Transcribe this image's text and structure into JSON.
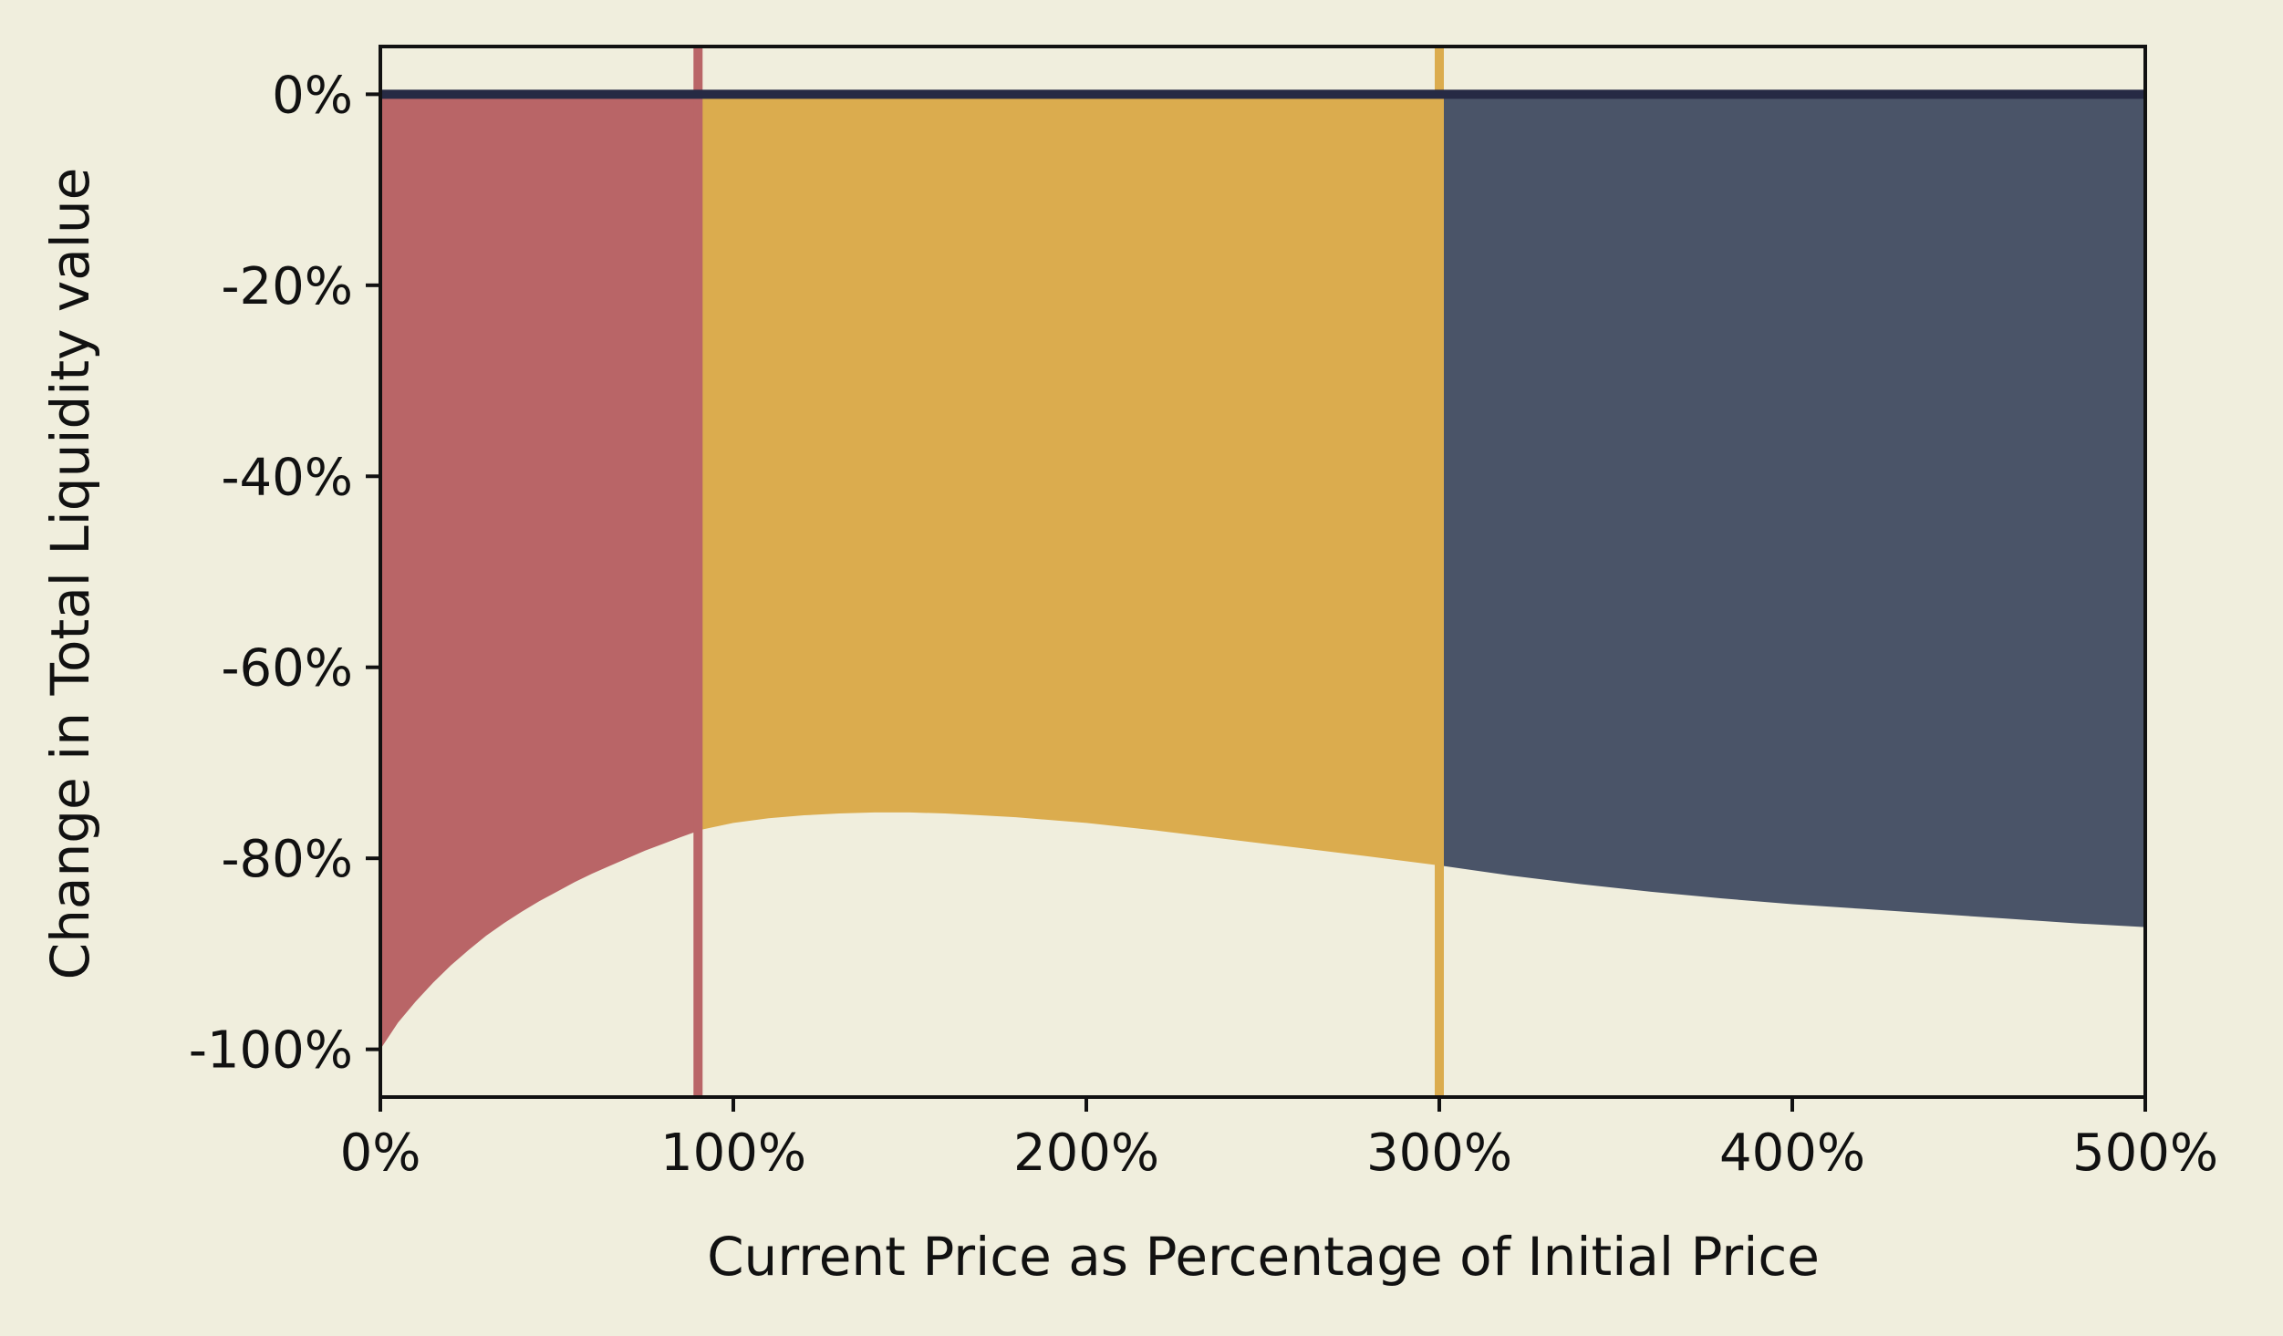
{
  "chart_data": {
    "type": "area",
    "title": "",
    "xlabel": "Current Price as Percentage of Initial Price",
    "ylabel": "Change in Total Liquidity value",
    "xlim": [
      0,
      500
    ],
    "ylim": [
      -105,
      5
    ],
    "x_ticks": [
      0,
      100,
      200,
      300,
      400,
      500
    ],
    "x_tick_labels": [
      "0%",
      "100%",
      "200%",
      "300%",
      "400%",
      "500%"
    ],
    "y_ticks": [
      0,
      -20,
      -40,
      -60,
      -80,
      -100
    ],
    "y_tick_labels": [
      "0%",
      "-20%",
      "-40%",
      "-60%",
      "-80%",
      "-100%"
    ],
    "grid": false,
    "legend": "none",
    "baseline": 0,
    "vertical_lines": [
      {
        "x": 90,
        "color": "#b96567"
      },
      {
        "x": 300,
        "color": "#dbac4e"
      }
    ],
    "regions": [
      {
        "color": "#b96567",
        "x": [
          0,
          5,
          10,
          15,
          20,
          25,
          30,
          35,
          40,
          45,
          50,
          55,
          60,
          65,
          70,
          75,
          80,
          85,
          91
        ],
        "y": [
          -100,
          -97.2,
          -95,
          -93,
          -91.2,
          -89.6,
          -88.1,
          -86.8,
          -85.6,
          -84.5,
          -83.5,
          -82.5,
          -81.6,
          -80.8,
          -80.0,
          -79.2,
          -78.5,
          -77.8,
          -77.0
        ]
      },
      {
        "color": "#dbac4e",
        "x": [
          91,
          100,
          110,
          120,
          130,
          140,
          150,
          160,
          170,
          180,
          200,
          220,
          240,
          260,
          280,
          301
        ],
        "y": [
          -77.0,
          -76.3,
          -75.8,
          -75.5,
          -75.3,
          -75.2,
          -75.2,
          -75.3,
          -75.5,
          -75.7,
          -76.3,
          -77.1,
          -78.0,
          -78.9,
          -79.8,
          -80.8
        ]
      },
      {
        "color": "#4a5468",
        "x": [
          301,
          320,
          340,
          360,
          380,
          400,
          420,
          440,
          460,
          480,
          500
        ],
        "y": [
          -80.8,
          -81.8,
          -82.7,
          -83.5,
          -84.2,
          -84.8,
          -85.3,
          -85.8,
          -86.3,
          -86.8,
          -87.2
        ]
      }
    ],
    "zero_line_color": "#262a44"
  }
}
